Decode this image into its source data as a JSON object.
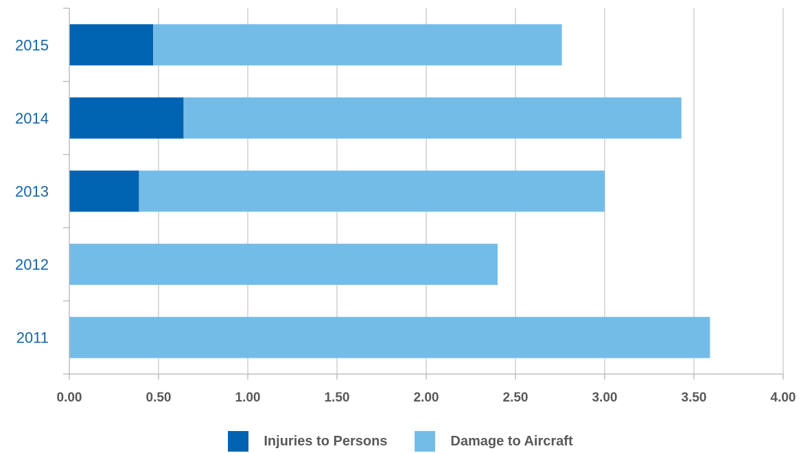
{
  "chart_data": {
    "type": "bar",
    "orientation": "horizontal",
    "stacked": true,
    "categories": [
      "2015",
      "2014",
      "2013",
      "2012",
      "2011"
    ],
    "series": [
      {
        "name": "Injuries to Persons",
        "color": "#0063b1",
        "values": [
          0.47,
          0.64,
          0.39,
          0,
          0
        ]
      },
      {
        "name": "Damage to Aircraft",
        "color": "#74bce8",
        "values": [
          2.29,
          2.79,
          2.61,
          2.4,
          3.59
        ]
      }
    ],
    "xlim": [
      0,
      4
    ],
    "xticks": [
      "0.00",
      "0.50",
      "1.00",
      "1.50",
      "2.00",
      "2.50",
      "3.00",
      "3.50",
      "4.00"
    ],
    "grid": true,
    "legend_position": "bottom-center"
  }
}
